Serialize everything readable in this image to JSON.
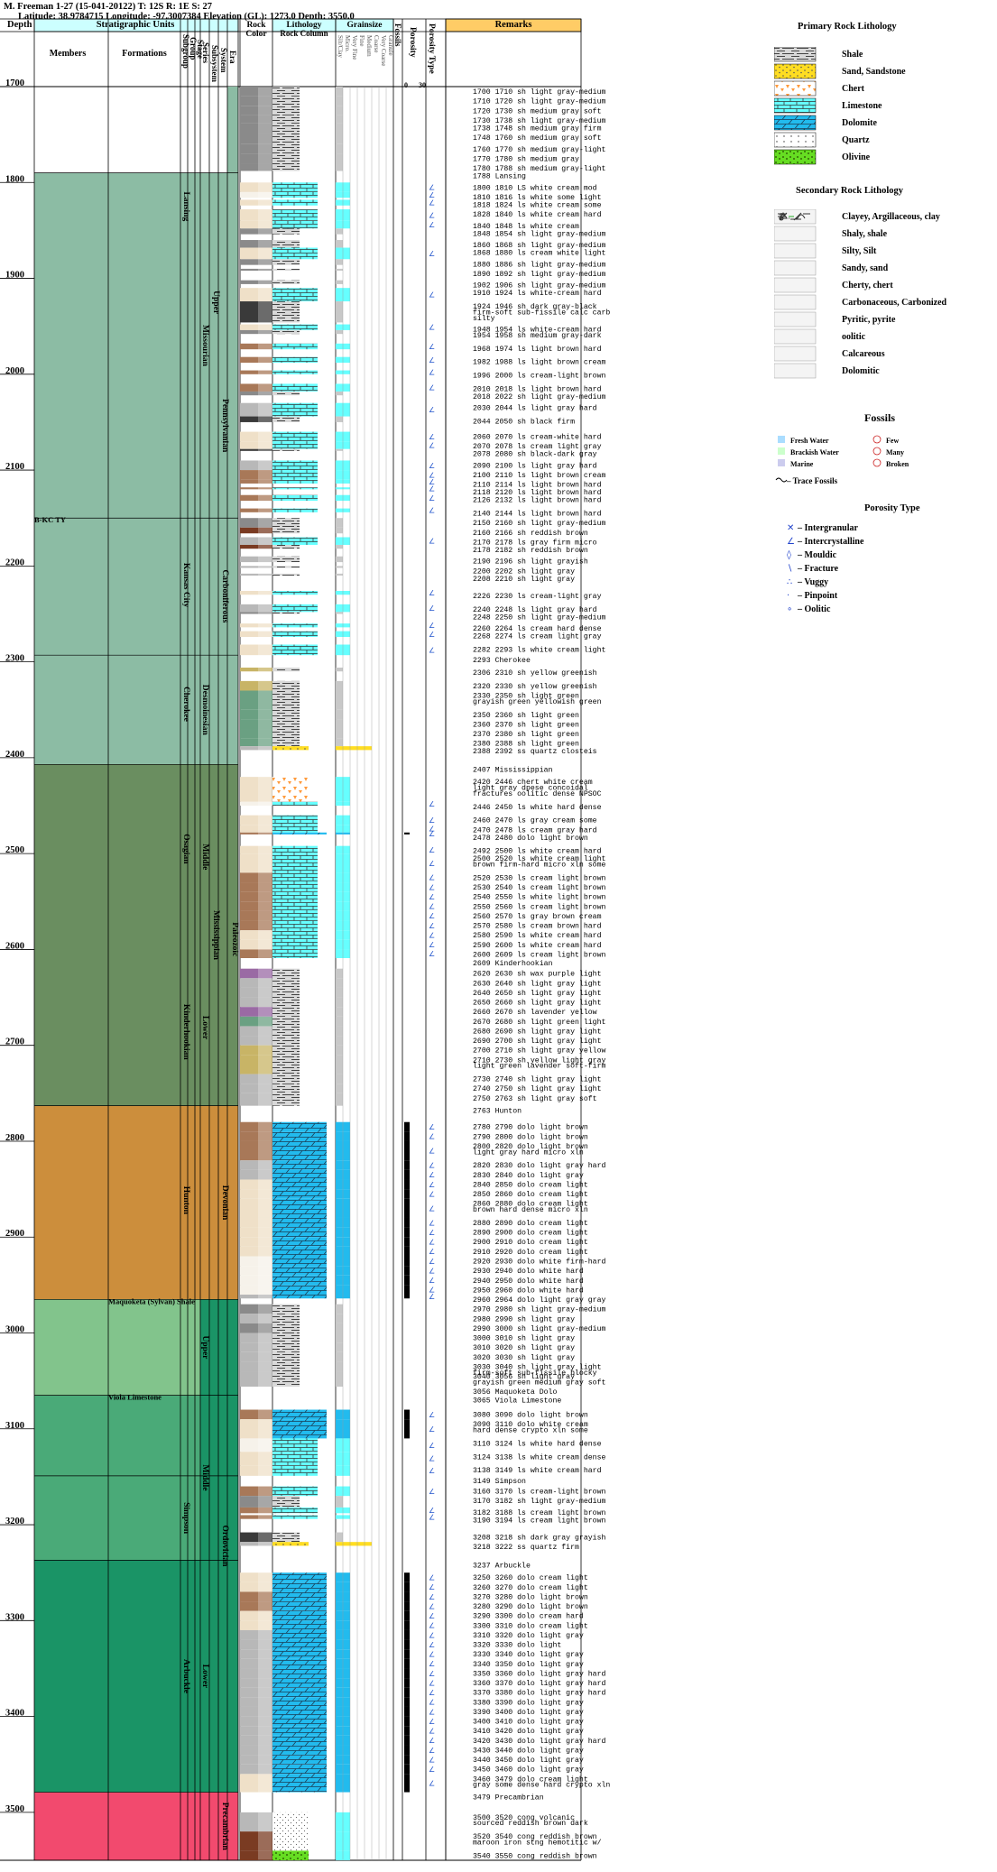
{
  "header": {
    "line1": "M. Freeman 1-27 (15-041-20122) T: 12S R: 1E S: 27",
    "line2": "Latitude: 38.9784715 Longitude: -97.3007384 Elevation (GL): 1273.0 Depth: 3550.0"
  },
  "columns": {
    "depth": "Depth",
    "strat_units": "Stratigraphic Units",
    "members": "Members",
    "formations": "Formations",
    "subgroup": "Subgroup",
    "group": "Group",
    "stage": "Stage",
    "series": "Series",
    "subsystem": "Subsystem",
    "system": "System",
    "era": "Era",
    "rock_color_1": "Rock",
    "rock_color_2": "Color",
    "lithology": "Lithology",
    "rock_column": "Rock Column",
    "grainsize": "Grainsize",
    "grain_classes": [
      "Silt/Clay",
      "Micro.",
      "Very Fine",
      "Fine",
      "Medium",
      "Coarse",
      "Very Coarse",
      "Granule"
    ],
    "fossils": "Fossils",
    "porosity": "Porosity",
    "porosity_scale": [
      "0",
      "30"
    ],
    "porosity_type": "Porosity Type",
    "remarks": "Remarks"
  },
  "depth_axis": {
    "top": 1700,
    "bottom": 3550,
    "ticks": [
      1700,
      1800,
      1900,
      2000,
      2100,
      2200,
      2300,
      2400,
      2500,
      2600,
      2700,
      2800,
      2900,
      3000,
      3100,
      3200,
      3300,
      3400,
      3500
    ]
  },
  "units": {
    "members": [
      {
        "name": "B-KC TY",
        "depth": 2150
      },
      {
        "name": "Maquoketa (Sylvan) Shale",
        "depth": 2965
      },
      {
        "name": "Viola Limestone",
        "depth": 3065
      }
    ],
    "formations": [
      {
        "name": "Lansing",
        "top": 1790,
        "bottom": 1860
      },
      {
        "name": "Kansas City",
        "top": 2150,
        "bottom": 2290
      },
      {
        "name": "Cherokee",
        "top": 2293,
        "bottom": 2395
      },
      {
        "name": "Osagian",
        "top": 2450,
        "bottom": 2540
      },
      {
        "name": "Kinderhookian",
        "top": 2609,
        "bottom": 2763
      },
      {
        "name": "Hunton",
        "top": 2763,
        "bottom": 2960
      },
      {
        "name": "Simpson",
        "top": 3149,
        "bottom": 3237
      },
      {
        "name": "Arbuckle",
        "top": 3237,
        "bottom": 3479
      }
    ],
    "series": [
      {
        "name": "Missourian",
        "top": 1790,
        "bottom": 2150
      },
      {
        "name": "Desmoinesian",
        "top": 2293,
        "bottom": 2407
      },
      {
        "name": "Middle",
        "top": 2407,
        "bottom": 2600
      },
      {
        "name": "Lower",
        "top": 2600,
        "bottom": 2763
      },
      {
        "name": "Upper",
        "top": 2965,
        "bottom": 3065
      },
      {
        "name": "Middle",
        "top": 3065,
        "bottom": 3237
      },
      {
        "name": "Lower",
        "top": 3237,
        "bottom": 3479
      }
    ],
    "subsystem": [
      {
        "name": "Upper",
        "top": 1700,
        "bottom": 2150
      },
      {
        "name": "Mississippian",
        "top": 2407,
        "bottom": 2763
      }
    ],
    "system": [
      {
        "name": "Pennsylvanian",
        "top": 1700,
        "bottom": 2407
      },
      {
        "name": "Carboniferous",
        "top": 1700,
        "bottom": 2763
      },
      {
        "name": "Devonian",
        "top": 2763,
        "bottom": 2965
      },
      {
        "name": "Ordovician",
        "top": 2965,
        "bottom": 3479
      },
      {
        "name": "Precambrian",
        "top": 3479,
        "bottom": 3550
      }
    ],
    "era": [
      {
        "name": "Paleozoic",
        "top": 1700,
        "bottom": 3479
      }
    ]
  },
  "remarks": [
    {
      "d": 1700,
      "t": "1700 1710 sh light gray-medium"
    },
    {
      "d": 1710,
      "t": "1710 1720 sh light gray-medium"
    },
    {
      "d": 1720,
      "t": "1720 1730 sh medium gray soft"
    },
    {
      "d": 1730,
      "t": "1730 1738 sh light gray-medium"
    },
    {
      "d": 1738,
      "t": "1738 1748 sh medium gray firm"
    },
    {
      "d": 1748,
      "t": "1748 1760 sh medium gray soft"
    },
    {
      "d": 1760,
      "t": "1760 1770 sh medium gray-light"
    },
    {
      "d": 1770,
      "t": "1770 1780 sh medium gray"
    },
    {
      "d": 1780,
      "t": "1780 1788 sh medium gray-light"
    },
    {
      "d": 1788,
      "t": "1788 Lansing"
    },
    {
      "d": 1800,
      "t": "1800 1810 LS white cream mod"
    },
    {
      "d": 1810,
      "t": "1810 1816 ls white some light"
    },
    {
      "d": 1818,
      "t": "1818 1824 ls white cream some"
    },
    {
      "d": 1828,
      "t": "1828 1840 ls white cream hard"
    },
    {
      "d": 1840,
      "t": "1840 1848 ls white cream"
    },
    {
      "d": 1848,
      "t": "1848 1854 sh light gray-medium"
    },
    {
      "d": 1860,
      "t": "1860 1868 sh light gray-medium"
    },
    {
      "d": 1868,
      "t": "1868 1880 ls cream white light"
    },
    {
      "d": 1880,
      "t": "1880 1886 sh light gray-medium"
    },
    {
      "d": 1890,
      "t": "1890 1892 sh light gray-medium"
    },
    {
      "d": 1902,
      "t": "1902 1906 sh light gray-medium"
    },
    {
      "d": 1910,
      "t": "1910 1924 ls white-cream hard"
    },
    {
      "d": 1924,
      "t": "1924 1946 sh dark gray-black"
    },
    {
      "d": 1930,
      "t": "firm-soft sub-fissile calc carb"
    },
    {
      "d": 1936,
      "t": "silty"
    },
    {
      "d": 1948,
      "t": "1948 1954 ls white-cream hard"
    },
    {
      "d": 1954,
      "t": "1954 1958 sh medium gray-dark"
    },
    {
      "d": 1968,
      "t": "1968 1974 ls light brown hard"
    },
    {
      "d": 1982,
      "t": "1982 1988 ls light brown cream"
    },
    {
      "d": 1996,
      "t": "1996 2000 ls cream-light brown"
    },
    {
      "d": 2010,
      "t": "2010 2018 ls light brown hard"
    },
    {
      "d": 2018,
      "t": "2018 2022 sh light gray-medium"
    },
    {
      "d": 2030,
      "t": "2030 2044 ls light gray hard"
    },
    {
      "d": 2044,
      "t": "2044 2050 sh black firm"
    },
    {
      "d": 2060,
      "t": "2060 2070 ls cream-white hard"
    },
    {
      "d": 2070,
      "t": "2070 2078 ls cream light gray"
    },
    {
      "d": 2078,
      "t": "2078 2080 sh black-dark gray"
    },
    {
      "d": 2090,
      "t": "2090 2100 ls light gray hard"
    },
    {
      "d": 2100,
      "t": "2100 2110 ls light brown cream"
    },
    {
      "d": 2110,
      "t": "2110 2114 ls light brown hard"
    },
    {
      "d": 2118,
      "t": "2118 2120 ls light brown hard"
    },
    {
      "d": 2126,
      "t": "2126 2132 ls light brown hard"
    },
    {
      "d": 2140,
      "t": "2140 2144 ls light brown hard"
    },
    {
      "d": 2150,
      "t": "2150 2160 sh light gray-medium"
    },
    {
      "d": 2160,
      "t": "2160 2166 sh reddish brown"
    },
    {
      "d": 2170,
      "t": "2170 2178 ls gray firm micro"
    },
    {
      "d": 2178,
      "t": "2178 2182 sh reddish brown"
    },
    {
      "d": 2190,
      "t": "2190 2196 sh light grayish"
    },
    {
      "d": 2200,
      "t": "2200 2202 sh light gray"
    },
    {
      "d": 2208,
      "t": "2208 2210 sh light gray"
    },
    {
      "d": 2226,
      "t": "2226 2230 ls cream-light gray"
    },
    {
      "d": 2240,
      "t": "2240 2248 ls light gray hard"
    },
    {
      "d": 2248,
      "t": "2248 2250 sh light gray-medium"
    },
    {
      "d": 2260,
      "t": "2260 2264 ls cream hard dense"
    },
    {
      "d": 2268,
      "t": "2268 2274 ls cream light gray"
    },
    {
      "d": 2282,
      "t": "2282 2293 ls white cream light"
    },
    {
      "d": 2293,
      "t": "2293 Cherokee"
    },
    {
      "d": 2306,
      "t": "2306 2310 sh yellow greenish"
    },
    {
      "d": 2320,
      "t": "2320 2330 sh yellow greenish"
    },
    {
      "d": 2330,
      "t": "2330 2350 sh light green"
    },
    {
      "d": 2336,
      "t": "grayish green yellowish green"
    },
    {
      "d": 2350,
      "t": "2350 2360 sh light green"
    },
    {
      "d": 2360,
      "t": "2360 2370 sh light green"
    },
    {
      "d": 2370,
      "t": "2370 2380 sh light green"
    },
    {
      "d": 2380,
      "t": "2380 2388 sh light green"
    },
    {
      "d": 2388,
      "t": "2388 2392 ss quartz closteis"
    },
    {
      "d": 2407,
      "t": "2407 Mississippian"
    },
    {
      "d": 2420,
      "t": "2420 2446 chert white cream"
    },
    {
      "d": 2426,
      "t": "light gray dpese concoidal"
    },
    {
      "d": 2432,
      "t": "fractures oolitic dense NPSOC"
    },
    {
      "d": 2446,
      "t": "2446 2450 ls white hard dense"
    },
    {
      "d": 2460,
      "t": "2460 2470 ls gray cream some"
    },
    {
      "d": 2470,
      "t": "2470 2478 ls cream gray hard"
    },
    {
      "d": 2478,
      "t": "2478 2480 dolo light brown"
    },
    {
      "d": 2492,
      "t": "2492 2500 ls white cream hard"
    },
    {
      "d": 2500,
      "t": "2500 2520 ls white cream light"
    },
    {
      "d": 2506,
      "t": "brown firm-hard micro xln some"
    },
    {
      "d": 2520,
      "t": "2520 2530 ls cream light brown"
    },
    {
      "d": 2530,
      "t": "2530 2540 ls cream light brown"
    },
    {
      "d": 2540,
      "t": "2540 2550 ls white light brown"
    },
    {
      "d": 2550,
      "t": "2550 2560 ls cream light brown"
    },
    {
      "d": 2560,
      "t": "2560 2570 ls gray brown cream"
    },
    {
      "d": 2570,
      "t": "2570 2580 ls cream brown hard"
    },
    {
      "d": 2580,
      "t": "2580 2590 ls white cream hard"
    },
    {
      "d": 2590,
      "t": "2590 2600 ls white cream hard"
    },
    {
      "d": 2600,
      "t": "2600 2609 ls cream light brown"
    },
    {
      "d": 2609,
      "t": "2609 Kinderhookian"
    },
    {
      "d": 2620,
      "t": "2620 2630 sh wax purple light"
    },
    {
      "d": 2630,
      "t": "2630 2640 sh light gray light"
    },
    {
      "d": 2640,
      "t": "2640 2650 sh light gray light"
    },
    {
      "d": 2650,
      "t": "2650 2660 sh light gray light"
    },
    {
      "d": 2660,
      "t": "2660 2670 sh lavender yellow"
    },
    {
      "d": 2670,
      "t": "2670 2680 sh light green light"
    },
    {
      "d": 2680,
      "t": "2680 2690 sh light gray light"
    },
    {
      "d": 2690,
      "t": "2690 2700 sh light gray light"
    },
    {
      "d": 2700,
      "t": "2700 2710 sh light gray yellow"
    },
    {
      "d": 2710,
      "t": "2710 2730 sh yellow light gray"
    },
    {
      "d": 2716,
      "t": "light green lavender soft-firm"
    },
    {
      "d": 2730,
      "t": "2730 2740 sh light gray light"
    },
    {
      "d": 2740,
      "t": "2740 2750 sh light gray light"
    },
    {
      "d": 2750,
      "t": "2750 2763 sh light gray soft"
    },
    {
      "d": 2763,
      "t": "2763 Hunton"
    },
    {
      "d": 2780,
      "t": "2780 2790 dolo light brown"
    },
    {
      "d": 2790,
      "t": "2790 2800 dolo light brown"
    },
    {
      "d": 2800,
      "t": "2800 2820 dolo light brown"
    },
    {
      "d": 2806,
      "t": "light gray hard micro xln"
    },
    {
      "d": 2820,
      "t": "2820 2830 dolo light gray hard"
    },
    {
      "d": 2830,
      "t": "2830 2840 dolo light gray"
    },
    {
      "d": 2840,
      "t": "2840 2850 dolo cream light"
    },
    {
      "d": 2850,
      "t": "2850 2860 dolo cream light"
    },
    {
      "d": 2860,
      "t": "2860 2880 dolo cream light"
    },
    {
      "d": 2866,
      "t": "brown hard dense micro xln"
    },
    {
      "d": 2880,
      "t": "2880 2890 dolo cream light"
    },
    {
      "d": 2890,
      "t": "2890 2900 dolo cream light"
    },
    {
      "d": 2900,
      "t": "2900 2910 dolo cream light"
    },
    {
      "d": 2910,
      "t": "2910 2920 dolo cream light"
    },
    {
      "d": 2920,
      "t": "2920 2930 dolo white firm-hard"
    },
    {
      "d": 2930,
      "t": "2930 2940 dolo white hard"
    },
    {
      "d": 2940,
      "t": "2940 2950 dolo white hard"
    },
    {
      "d": 2950,
      "t": "2950 2960 dolo white hard"
    },
    {
      "d": 2960,
      "t": "2960 2964 dolo light gray gray"
    },
    {
      "d": 2970,
      "t": "2970 2980 sh light gray-medium"
    },
    {
      "d": 2980,
      "t": "2980 2990 sh light gray"
    },
    {
      "d": 2990,
      "t": "2990 3000 sh light gray-medium"
    },
    {
      "d": 3000,
      "t": "3000 3010 sh light gray"
    },
    {
      "d": 3010,
      "t": "3010 3020 sh light gray"
    },
    {
      "d": 3020,
      "t": "3020 3030 sh light gray"
    },
    {
      "d": 3030,
      "t": "3030 3040 sh light gray light"
    },
    {
      "d": 3036,
      "t": "firm-soft sub-fissile blocky"
    },
    {
      "d": 3040,
      "t": "3040 3056 sh light gray"
    },
    {
      "d": 3046,
      "t": "grayish green medium gray soft"
    },
    {
      "d": 3056,
      "t": "3056 Maquoketa Dolo"
    },
    {
      "d": 3065,
      "t": "3065 Viola Limestone"
    },
    {
      "d": 3080,
      "t": "3080 3090 dolo light brown"
    },
    {
      "d": 3090,
      "t": "3090 3110 dolo white cream"
    },
    {
      "d": 3096,
      "t": "hard dense crypto xln some"
    },
    {
      "d": 3110,
      "t": "3110 3124 ls white hard dense"
    },
    {
      "d": 3124,
      "t": "3124 3138 ls white cream dense"
    },
    {
      "d": 3138,
      "t": "3138 3149 ls white cream hard"
    },
    {
      "d": 3149,
      "t": "3149 Simpson"
    },
    {
      "d": 3160,
      "t": "3160 3170 ls cream-light brown"
    },
    {
      "d": 3170,
      "t": "3170 3182 sh light gray-medium"
    },
    {
      "d": 3182,
      "t": "3182 3188 ls cream light brown"
    },
    {
      "d": 3190,
      "t": "3190 3194 ls cream light brown"
    },
    {
      "d": 3208,
      "t": "3208 3218 sh dark gray grayish"
    },
    {
      "d": 3218,
      "t": "3218 3222 ss quartz firm"
    },
    {
      "d": 3237,
      "t": "3237 Arbuckle"
    },
    {
      "d": 3250,
      "t": "3250 3260 dolo cream light"
    },
    {
      "d": 3260,
      "t": "3260 3270 dolo cream light"
    },
    {
      "d": 3270,
      "t": "3270 3280 dolo light brown"
    },
    {
      "d": 3280,
      "t": "3280 3290 dolo light brown"
    },
    {
      "d": 3290,
      "t": "3290 3300 dolo cream hard"
    },
    {
      "d": 3300,
      "t": "3300 3310 dolo cream light"
    },
    {
      "d": 3310,
      "t": "3310 3320 dolo light gray"
    },
    {
      "d": 3320,
      "t": "3320 3330 dolo light"
    },
    {
      "d": 3330,
      "t": "3330 3340 dolo light gray"
    },
    {
      "d": 3340,
      "t": "3340 3350 dolo light gray"
    },
    {
      "d": 3350,
      "t": "3350 3360 dolo light gray hard"
    },
    {
      "d": 3360,
      "t": "3360 3370 dolo light gray hard"
    },
    {
      "d": 3370,
      "t": "3370 3380 dolo light gray hard"
    },
    {
      "d": 3380,
      "t": "3380 3390 dolo light gray"
    },
    {
      "d": 3390,
      "t": "3390 3400 dolo light gray"
    },
    {
      "d": 3400,
      "t": "3400 3410 dolo light gray"
    },
    {
      "d": 3410,
      "t": "3410 3420 dolo light gray"
    },
    {
      "d": 3420,
      "t": "3420 3430 dolo light gray hard"
    },
    {
      "d": 3430,
      "t": "3430 3440 dolo light gray"
    },
    {
      "d": 3440,
      "t": "3440 3450 dolo light gray"
    },
    {
      "d": 3450,
      "t": "3450 3460 dolo light gray"
    },
    {
      "d": 3460,
      "t": "3460 3479 dolo cream light"
    },
    {
      "d": 3466,
      "t": "gray some dense hard crypto xln"
    },
    {
      "d": 3479,
      "t": "3479 Precambrian"
    },
    {
      "d": 3500,
      "t": "3500 3520 cong volcanic"
    },
    {
      "d": 3506,
      "t": "sourced reddish brown dark"
    },
    {
      "d": 3520,
      "t": "3520 3540 cong reddish brown"
    },
    {
      "d": 3526,
      "t": "maroon iron stng hemotitic w/"
    },
    {
      "d": 3540,
      "t": "3540 3550 cong reddish brown"
    }
  ],
  "legend": {
    "primary_title": "Primary Rock Lithology",
    "primary": [
      "Shale",
      "Sand, Sandstone",
      "Chert",
      "Limestone",
      "Dolomite",
      "Quartz",
      "Olivine"
    ],
    "secondary_title": "Secondary Rock Lithology",
    "secondary": [
      "Clayey, Argillaceous, clay",
      "Shaly, shale",
      "Silty, Silt",
      "Sandy, sand",
      "Cherty, chert",
      "Carbonaceous, Carbonized",
      "Pyritic, pyrite",
      "oolitic",
      "Calcareous",
      "Dolomitic"
    ],
    "fossils_title": "Fossils",
    "fossils": [
      "Fresh Water",
      "Brackish Water",
      "Marine",
      "Few",
      "Many",
      "Broken"
    ],
    "trace_fossils": "– Trace Fossils",
    "porosity_type_title": "Porosity Type",
    "porosity_types": [
      "– Intergranular",
      "– Intercrystalline",
      "– Mouldic",
      "– Fracture",
      "– Vuggy",
      "– Pinpoint",
      "– Oolitic"
    ]
  },
  "colors": {
    "header_fill": "#ccffff",
    "remarks_header": "#ffcc66",
    "pennsylvanian": "#8cbca4",
    "mississippian": "#6a8e60",
    "devonian": "#cc8e3c",
    "ordovician_upper": "#82c48c",
    "ordovician_middle": "#4aaa78",
    "ordovician_lower": "#1a9466",
    "precambrian": "#f24a6e",
    "limestone": "#66ffff",
    "dolomite": "#22bbee",
    "sand": "#ffdd22"
  }
}
